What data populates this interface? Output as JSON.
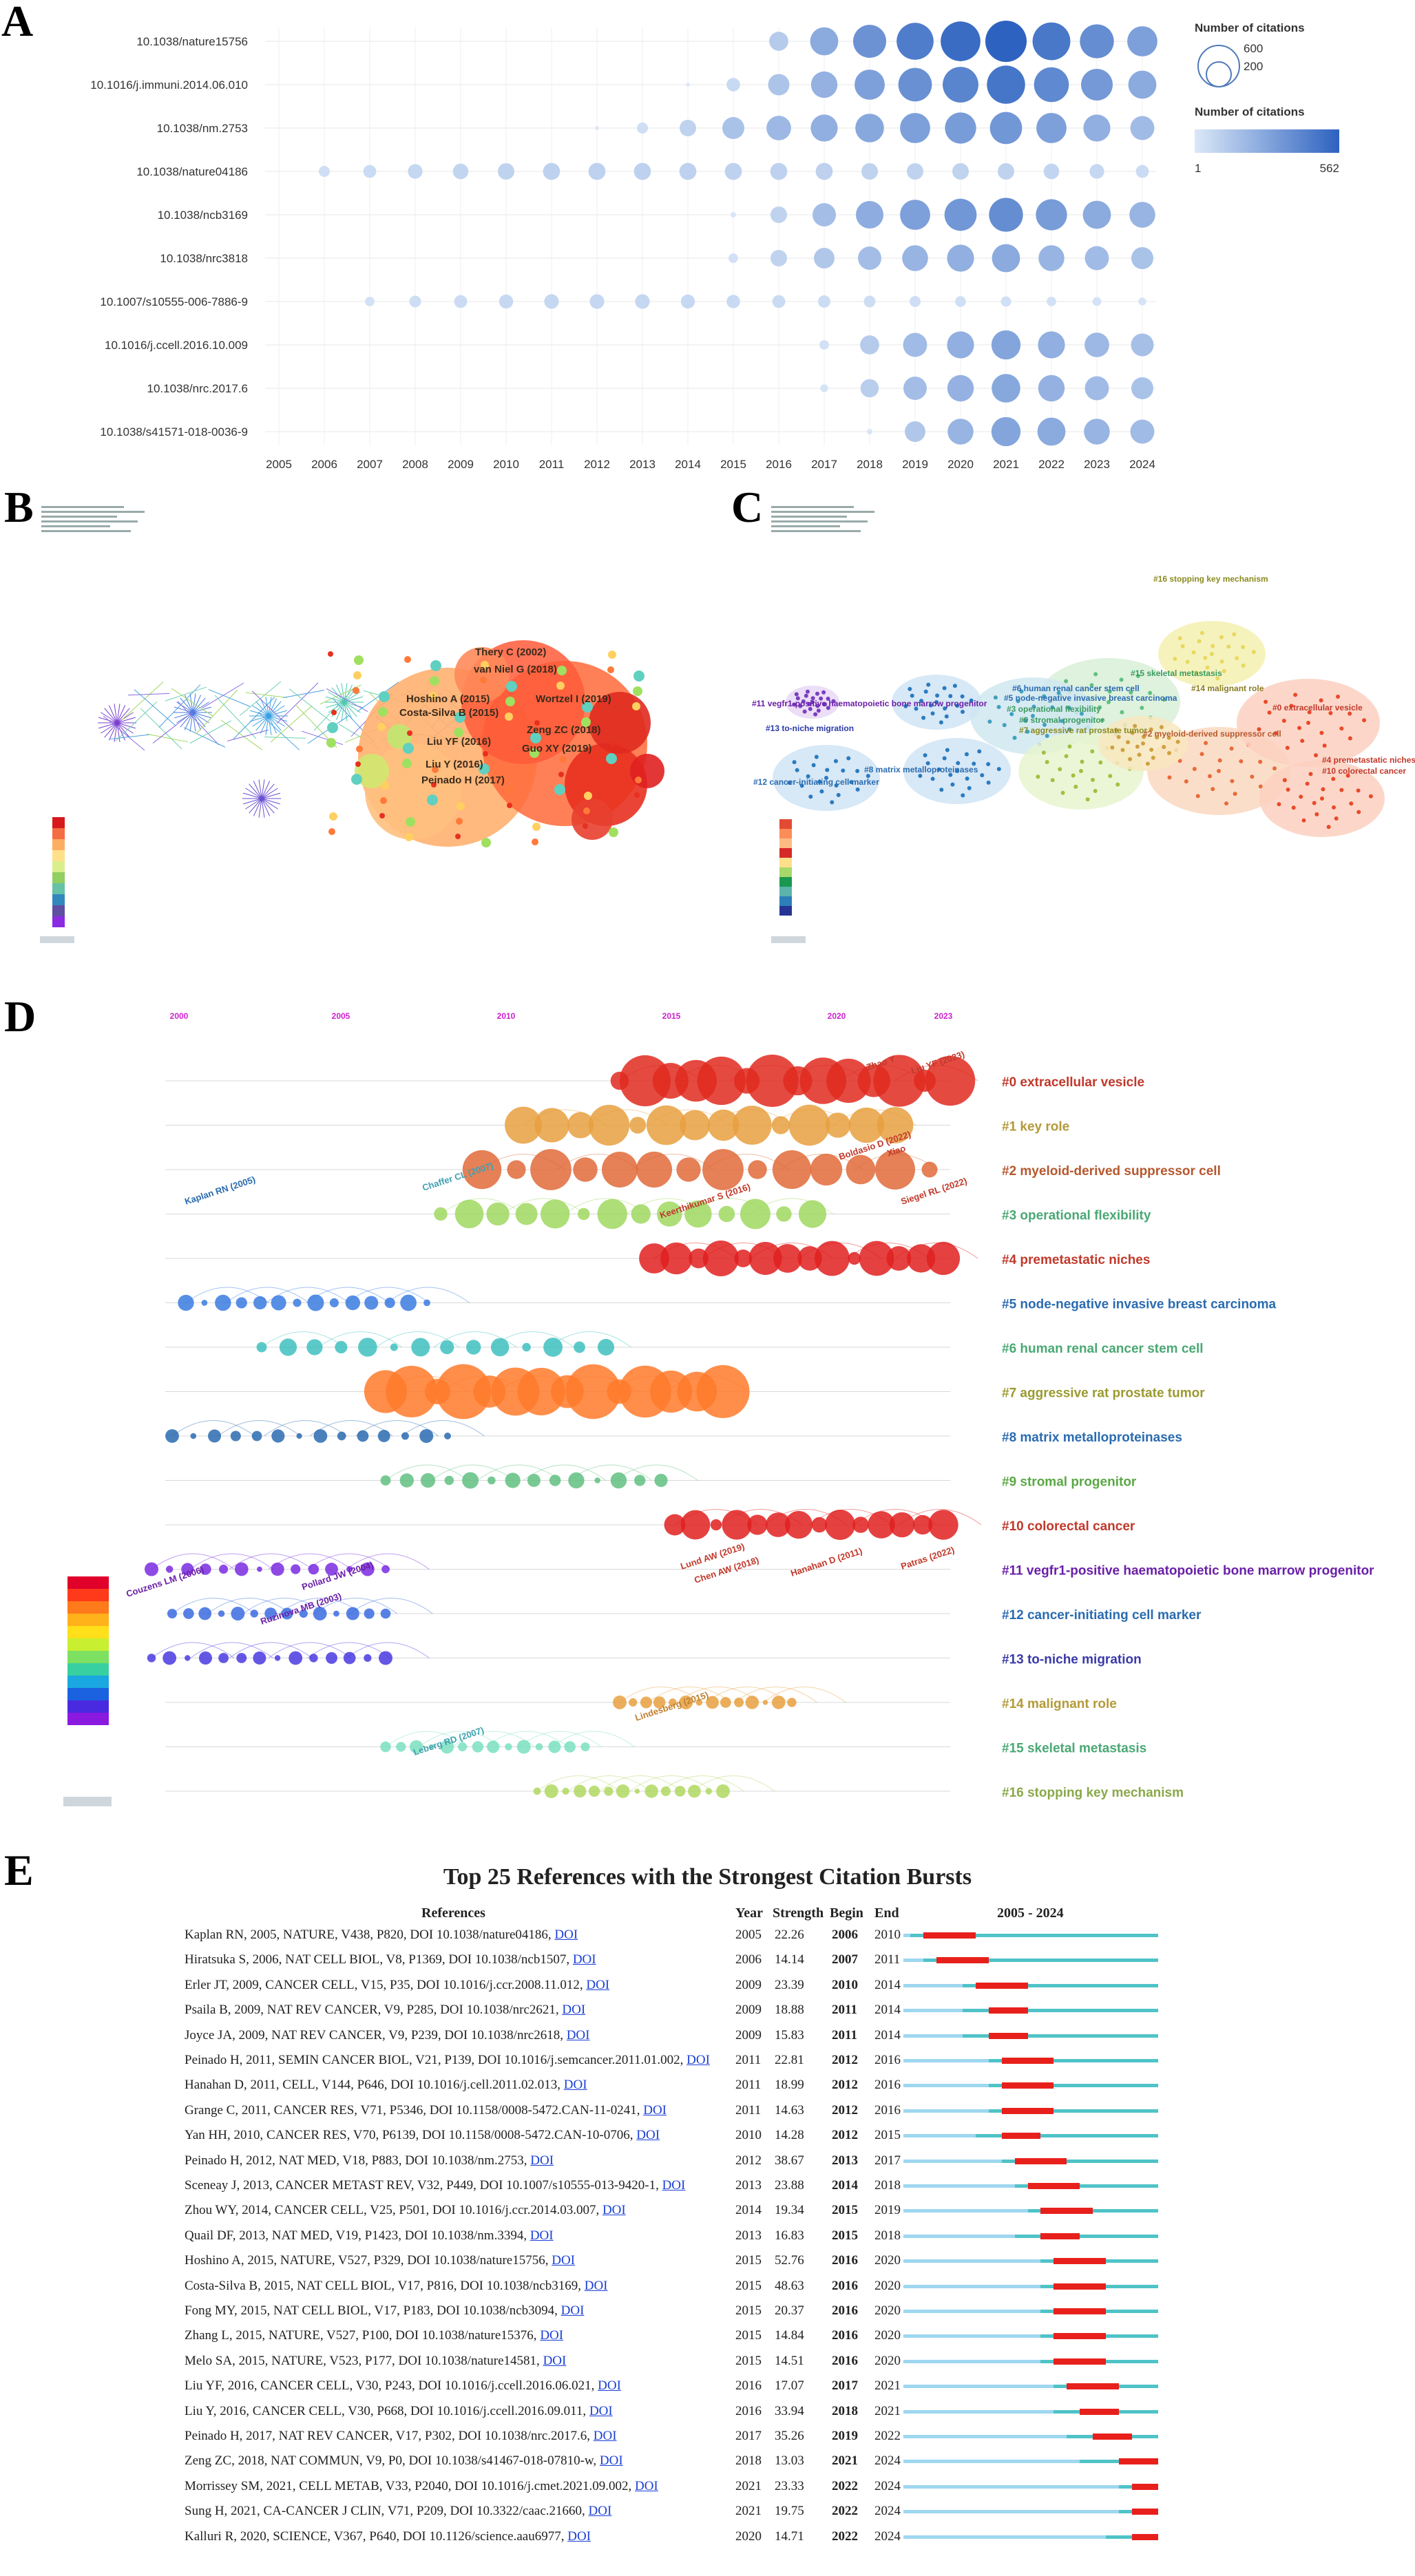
{
  "panel_labels": {
    "a": "A",
    "b": "B",
    "c": "C",
    "d": "D",
    "e": "E"
  },
  "chart_data": [
    {
      "type": "bubble-matrix",
      "panel": "A",
      "rows": [
        "10.1038/nature15756",
        "10.1016/j.immuni.2014.06.010",
        "10.1038/nm.2753",
        "10.1038/nature04186",
        "10.1038/ncb3169",
        "10.1038/nrc3818",
        "10.1007/s10555-006-7886-9",
        "10.1016/j.ccell.2016.10.009",
        "10.1038/nrc.2017.6",
        "10.1038/s41571-018-0036-9"
      ],
      "years": [
        "2005",
        "2006",
        "2007",
        "2008",
        "2009",
        "2010",
        "2011",
        "2012",
        "2013",
        "2014",
        "2015",
        "2016",
        "2017",
        "2018",
        "2019",
        "2020",
        "2021",
        "2022",
        "2023",
        "2024"
      ],
      "values": [
        [
          0,
          0,
          0,
          0,
          0,
          0,
          0,
          0,
          0,
          0,
          0,
          120,
          260,
          360,
          450,
          520,
          562,
          470,
          380,
          300
        ],
        [
          0,
          0,
          0,
          0,
          0,
          0,
          0,
          0,
          0,
          5,
          60,
          150,
          230,
          300,
          370,
          420,
          480,
          400,
          330,
          260
        ],
        [
          0,
          0,
          0,
          0,
          0,
          0,
          0,
          5,
          40,
          90,
          160,
          200,
          240,
          270,
          300,
          320,
          340,
          300,
          240,
          190
        ],
        [
          0,
          40,
          55,
          70,
          80,
          90,
          95,
          95,
          95,
          95,
          95,
          95,
          95,
          90,
          90,
          90,
          90,
          80,
          70,
          55
        ],
        [
          0,
          0,
          0,
          0,
          0,
          0,
          0,
          0,
          0,
          0,
          10,
          90,
          180,
          250,
          300,
          340,
          380,
          320,
          260,
          220
        ],
        [
          0,
          0,
          0,
          0,
          0,
          0,
          0,
          0,
          0,
          0,
          30,
          90,
          140,
          180,
          220,
          240,
          260,
          220,
          190,
          160
        ],
        [
          0,
          0,
          30,
          45,
          55,
          65,
          70,
          70,
          70,
          65,
          60,
          55,
          50,
          45,
          40,
          38,
          35,
          30,
          25,
          20
        ],
        [
          0,
          0,
          0,
          0,
          0,
          0,
          0,
          0,
          0,
          0,
          0,
          0,
          30,
          120,
          190,
          240,
          280,
          240,
          200,
          170
        ],
        [
          0,
          0,
          0,
          0,
          0,
          0,
          0,
          0,
          0,
          0,
          0,
          0,
          20,
          110,
          180,
          230,
          270,
          230,
          190,
          160
        ],
        [
          0,
          0,
          0,
          0,
          0,
          0,
          0,
          0,
          0,
          0,
          0,
          0,
          0,
          10,
          140,
          220,
          280,
          260,
          220,
          190
        ]
      ],
      "legend_size_title": "Number of citations",
      "legend_size_values": [
        "600",
        "200"
      ],
      "legend_color_title": "Number of citations",
      "legend_color_min": "1",
      "legend_color_max": "562",
      "colors": {
        "low": "#dbe8f8",
        "high": "#2d62c0"
      }
    },
    {
      "type": "network",
      "panel": "B",
      "node_labels": [
        "Thery C (2002)",
        "van Niel G (2018)",
        "Hoshino A (2015)",
        "Costa-Silva B (2015)",
        "Wortzel I (2019)",
        "Zeng ZC (2018)",
        "Liu YF (2016)",
        "Guo XY (2019)",
        "Liu Y (2016)",
        "Peinado H (2017)"
      ]
    },
    {
      "type": "cluster-network",
      "panel": "C",
      "cluster_labels": [
        "#16 stopping key mechanism",
        "#15 skeletal metastasis",
        "#14 malignant role",
        "#6 human renal cancer stem cell",
        "#5 node-negative invasive breast carcinoma",
        "#11 vegfr1-positive haematopoietic bone marrow progenitor",
        "#3 operational flexibility",
        "#9 stromal progenitor",
        "#0 extracellular vesicle",
        "#13 to-niche migration",
        "#8 matrix metalloproteinases",
        "#7 aggressive rat prostate tumor",
        "#2 myeloid-derived suppressor cell",
        "#4 premetastatic niches",
        "#10 colorectal cancer",
        "#12 cancer-initiating cell marker"
      ]
    },
    {
      "type": "timeline",
      "panel": "D",
      "years": [
        "2000",
        "2005",
        "2010",
        "2015",
        "2020",
        "2023"
      ],
      "clusters": [
        {
          "label": "#0 extracellular vesicle",
          "color": "#c0392b"
        },
        {
          "label": "#1 key role",
          "color": "#b39a3a"
        },
        {
          "label": "#2 myeloid-derived suppressor cell",
          "color": "#b5582e"
        },
        {
          "label": "#3 operational flexibility",
          "color": "#4aa874"
        },
        {
          "label": "#4 premetastatic niches",
          "color": "#c0392b"
        },
        {
          "label": "#5 node-negative invasive breast carcinoma",
          "color": "#2a6bb0"
        },
        {
          "label": "#6 human renal cancer stem cell",
          "color": "#4aa874"
        },
        {
          "label": "#7 aggressive rat prostate tumor",
          "color": "#9a9a30"
        },
        {
          "label": "#8 matrix metalloproteinases",
          "color": "#2a6bb0"
        },
        {
          "label": "#9 stromal progenitor",
          "color": "#5aa845"
        },
        {
          "label": "#10 colorectal cancer",
          "color": "#c0392b"
        },
        {
          "label": "#11 vegfr1-positive haematopoietic bone marrow progenitor",
          "color": "#6a1fa8"
        },
        {
          "label": "#12 cancer-initiating cell marker",
          "color": "#2a6bb0"
        },
        {
          "label": "#13 to-niche migration",
          "color": "#3a3aa8"
        },
        {
          "label": "#14 malignant role",
          "color": "#b39a3a"
        },
        {
          "label": "#15 skeletal metastasis",
          "color": "#4aa874"
        },
        {
          "label": "#16 stopping key mechanism",
          "color": "#8aa84a"
        }
      ],
      "author_labels": [
        "Liu YF (2023)",
        "Zhao Y",
        "Boldasio D (2022)",
        "Xiao",
        "Siegel RL (2022)",
        "Keerthikumar S (2016)",
        "Chaffer CL (2007)",
        "Kaplan RN (2005)",
        "Pollard JW (2004)",
        "Couzens LM (2006)",
        "Ruzinova MB (2003)",
        "Leberg RD (2007)",
        "Lindesberg (2015)",
        "Patras (2022)",
        "Lund AW (2019)",
        "Chen AW (2018)",
        "Hanahan D (2011)"
      ]
    }
  ],
  "bursts": {
    "title": "Top 25 References with the Strongest Citation Bursts",
    "headers": {
      "references": "References",
      "year": "Year",
      "strength": "Strength",
      "begin": "Begin",
      "end": "End",
      "range": "2005 - 2024"
    },
    "link_label": "DOI",
    "rows": [
      {
        "ref": "Kaplan RN, 2005, NATURE, V438, P820, DOI 10.1038/nature04186,",
        "year": "2005",
        "strength": "22.26",
        "begin": "2006",
        "end": "2010"
      },
      {
        "ref": "Hiratsuka S, 2006, NAT CELL BIOL, V8, P1369, DOI 10.1038/ncb1507,",
        "year": "2006",
        "strength": "14.14",
        "begin": "2007",
        "end": "2011"
      },
      {
        "ref": "Erler JT, 2009, CANCER CELL, V15, P35, DOI 10.1016/j.ccr.2008.11.012,",
        "year": "2009",
        "strength": "23.39",
        "begin": "2010",
        "end": "2014"
      },
      {
        "ref": "Psaila B, 2009, NAT REV CANCER, V9, P285, DOI 10.1038/nrc2621,",
        "year": "2009",
        "strength": "18.88",
        "begin": "2011",
        "end": "2014"
      },
      {
        "ref": "Joyce JA, 2009, NAT REV CANCER, V9, P239, DOI 10.1038/nrc2618,",
        "year": "2009",
        "strength": "15.83",
        "begin": "2011",
        "end": "2014"
      },
      {
        "ref": "Peinado H, 2011, SEMIN CANCER BIOL, V21, P139, DOI 10.1016/j.semcancer.2011.01.002,",
        "year": "2011",
        "strength": "22.81",
        "begin": "2012",
        "end": "2016"
      },
      {
        "ref": "Hanahan D, 2011, CELL, V144, P646, DOI 10.1016/j.cell.2011.02.013,",
        "year": "2011",
        "strength": "18.99",
        "begin": "2012",
        "end": "2016"
      },
      {
        "ref": "Grange C, 2011, CANCER RES, V71, P5346, DOI 10.1158/0008-5472.CAN-11-0241,",
        "year": "2011",
        "strength": "14.63",
        "begin": "2012",
        "end": "2016"
      },
      {
        "ref": "Yan HH, 2010, CANCER RES, V70, P6139, DOI 10.1158/0008-5472.CAN-10-0706,",
        "year": "2010",
        "strength": "14.28",
        "begin": "2012",
        "end": "2015"
      },
      {
        "ref": "Peinado H, 2012, NAT MED, V18, P883, DOI 10.1038/nm.2753,",
        "year": "2012",
        "strength": "38.67",
        "begin": "2013",
        "end": "2017"
      },
      {
        "ref": "Sceneay J, 2013, CANCER METAST REV, V32, P449, DOI 10.1007/s10555-013-9420-1,",
        "year": "2013",
        "strength": "23.88",
        "begin": "2014",
        "end": "2018"
      },
      {
        "ref": "Zhou WY, 2014, CANCER CELL, V25, P501, DOI 10.1016/j.ccr.2014.03.007,",
        "year": "2014",
        "strength": "19.34",
        "begin": "2015",
        "end": "2019"
      },
      {
        "ref": "Quail DF, 2013, NAT MED, V19, P1423, DOI 10.1038/nm.3394,",
        "year": "2013",
        "strength": "16.83",
        "begin": "2015",
        "end": "2018"
      },
      {
        "ref": "Hoshino A, 2015, NATURE, V527, P329, DOI 10.1038/nature15756,",
        "year": "2015",
        "strength": "52.76",
        "begin": "2016",
        "end": "2020"
      },
      {
        "ref": "Costa-Silva B, 2015, NAT CELL BIOL, V17, P816, DOI 10.1038/ncb3169,",
        "year": "2015",
        "strength": "48.63",
        "begin": "2016",
        "end": "2020"
      },
      {
        "ref": "Fong MY, 2015, NAT CELL BIOL, V17, P183, DOI 10.1038/ncb3094,",
        "year": "2015",
        "strength": "20.37",
        "begin": "2016",
        "end": "2020"
      },
      {
        "ref": "Zhang L, 2015, NATURE, V527, P100, DOI 10.1038/nature15376,",
        "year": "2015",
        "strength": "14.84",
        "begin": "2016",
        "end": "2020"
      },
      {
        "ref": "Melo SA, 2015, NATURE, V523, P177, DOI 10.1038/nature14581,",
        "year": "2015",
        "strength": "14.51",
        "begin": "2016",
        "end": "2020"
      },
      {
        "ref": "Liu YF, 2016, CANCER CELL, V30, P243, DOI 10.1016/j.ccell.2016.06.021,",
        "year": "2016",
        "strength": "17.07",
        "begin": "2017",
        "end": "2021"
      },
      {
        "ref": "Liu Y, 2016, CANCER CELL, V30, P668, DOI 10.1016/j.ccell.2016.09.011,",
        "year": "2016",
        "strength": "33.94",
        "begin": "2018",
        "end": "2021"
      },
      {
        "ref": "Peinado H, 2017, NAT REV CANCER, V17, P302, DOI 10.1038/nrc.2017.6,",
        "year": "2017",
        "strength": "35.26",
        "begin": "2019",
        "end": "2022"
      },
      {
        "ref": "Zeng ZC, 2018, NAT COMMUN, V9, P0, DOI 10.1038/s41467-018-07810-w,",
        "year": "2018",
        "strength": "13.03",
        "begin": "2021",
        "end": "2024"
      },
      {
        "ref": "Morrissey SM, 2021, CELL METAB, V33, P2040, DOI 10.1016/j.cmet.2021.09.002,",
        "year": "2021",
        "strength": "23.33",
        "begin": "2022",
        "end": "2024"
      },
      {
        "ref": "Sung H, 2021, CA-CANCER J CLIN, V71, P209, DOI 10.3322/caac.21660,",
        "year": "2021",
        "strength": "19.75",
        "begin": "2022",
        "end": "2024"
      },
      {
        "ref": "Kalluri R, 2020, SCIENCE, V367, P640, DOI 10.1126/science.aau6977,",
        "year": "2020",
        "strength": "14.71",
        "begin": "2022",
        "end": "2024"
      }
    ]
  }
}
